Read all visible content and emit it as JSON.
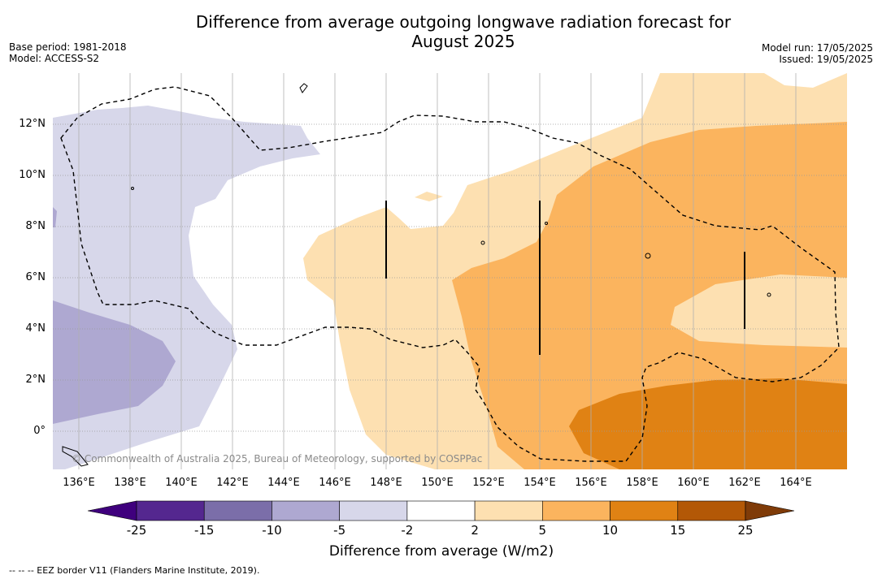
{
  "title_line1": "Difference from average outgoing longwave radiation forecast for",
  "title_line2": "August 2025",
  "meta_left": [
    "Base period: 1981-2018",
    "Model: ACCESS-S2"
  ],
  "meta_right": [
    "Model run: 17/05/2025",
    "Issued: 19/05/2025"
  ],
  "lon_labels": [
    "136°E",
    "138°E",
    "140°E",
    "142°E",
    "144°E",
    "146°E",
    "148°E",
    "150°E",
    "152°E",
    "154°E",
    "156°E",
    "158°E",
    "160°E",
    "162°E",
    "164°E"
  ],
  "lat_labels": [
    "12°N",
    "10°N",
    "8°N",
    "6°N",
    "4°N",
    "2°N",
    "0°"
  ],
  "credit": "© Commonwealth of Australia 2025, Bureau of Meteorology, supported by COSPPac",
  "colorbar": {
    "title": "Difference from average (W/m2)",
    "tick_labels": [
      "-25",
      "-15",
      "-10",
      "-5",
      "-2",
      "2",
      "5",
      "10",
      "15",
      "25"
    ],
    "colors": [
      "#3f007d",
      "#54278f",
      "#7b6ea9",
      "#aea8d1",
      "#d7d7ea",
      "#ffffff",
      "#fde0b1",
      "#fbb45e",
      "#e08214",
      "#b35806",
      "#7f3b08"
    ]
  },
  "footnote": "--  --  -- EEZ border V11 (Flanders Marine Institute, 2019)."
}
